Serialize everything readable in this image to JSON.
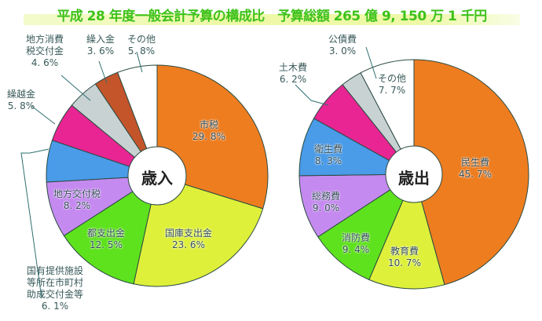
{
  "title": "平成 28 年度一般会計予算の構成比　予算総額 265 億 9, 150 万 1 千円",
  "chart_data": [
    {
      "type": "pie",
      "title": "歳入",
      "center_label": "歳入",
      "start": "top, clockwise",
      "categories": [
        "市税",
        "国庫支出金",
        "都支出金",
        "地方交付税",
        "国有提供施設等所在市町村助成交付金等",
        "繰越金",
        "地方消費税交付金",
        "繰入金",
        "その他"
      ],
      "values": [
        29.8,
        23.6,
        12.5,
        8.2,
        6.1,
        5.8,
        4.6,
        3.6,
        5.8
      ],
      "unit": "%",
      "colors": [
        "#ee7d20",
        "#dff03a",
        "#5fe21e",
        "#c58af0",
        "#4a9be8",
        "#e82592",
        "#c8d2d3",
        "#c4542a",
        "#ffffff"
      ]
    },
    {
      "type": "pie",
      "title": "歳出",
      "center_label": "歳出",
      "start": "top, clockwise",
      "categories": [
        "民生費",
        "教育費",
        "消防費",
        "総務費",
        "衛生費",
        "土木費",
        "公債費",
        "その他"
      ],
      "values": [
        45.7,
        10.7,
        9.4,
        9.0,
        8.3,
        6.2,
        3.0,
        7.7
      ],
      "unit": "%",
      "colors": [
        "#ee7d20",
        "#dff03a",
        "#5fe21e",
        "#c58af0",
        "#4a9be8",
        "#e82592",
        "#c8d2d3",
        "#ffffff"
      ]
    }
  ],
  "revenue": {
    "center": "歳入",
    "labels": {
      "shizei": {
        "name": "市税",
        "pct": "29. 8%"
      },
      "kokko": {
        "name": "国庫支出金",
        "pct": "23. 6%"
      },
      "toshi": {
        "name": "都支出金",
        "pct": "12. 5%"
      },
      "kofuzei": {
        "name": "地方交付税",
        "pct": "8. 2%"
      },
      "kokuyu": {
        "line1": "国有提供施設",
        "line2": "等所在市町村",
        "line3": "助成交付金等",
        "pct": "6. 1%"
      },
      "kurikoshi": {
        "name": "繰越金",
        "pct": "5. 8%"
      },
      "shohi": {
        "line1": "地方消費",
        "line2": "税交付金",
        "pct": "4. 6%"
      },
      "kuriire": {
        "name": "繰入金",
        "pct": "3. 6%"
      },
      "sonota": {
        "name": "その他",
        "pct": "5. 8%"
      }
    }
  },
  "expenditure": {
    "center": "歳出",
    "labels": {
      "minsei": {
        "name": "民生費",
        "pct": "45. 7%"
      },
      "kyoiku": {
        "name": "教育費",
        "pct": "10. 7%"
      },
      "shobo": {
        "name": "消防費",
        "pct": "9. 4%"
      },
      "somu": {
        "name": "総務費",
        "pct": "9. 0%"
      },
      "eisei": {
        "name": "衛生費",
        "pct": "8. 3%"
      },
      "doboku": {
        "name": "土木費",
        "pct": "6. 2%"
      },
      "kosai": {
        "name": "公債費",
        "pct": "3. 0%"
      },
      "sonota": {
        "name": "その他",
        "pct": "7. 7%"
      }
    }
  }
}
